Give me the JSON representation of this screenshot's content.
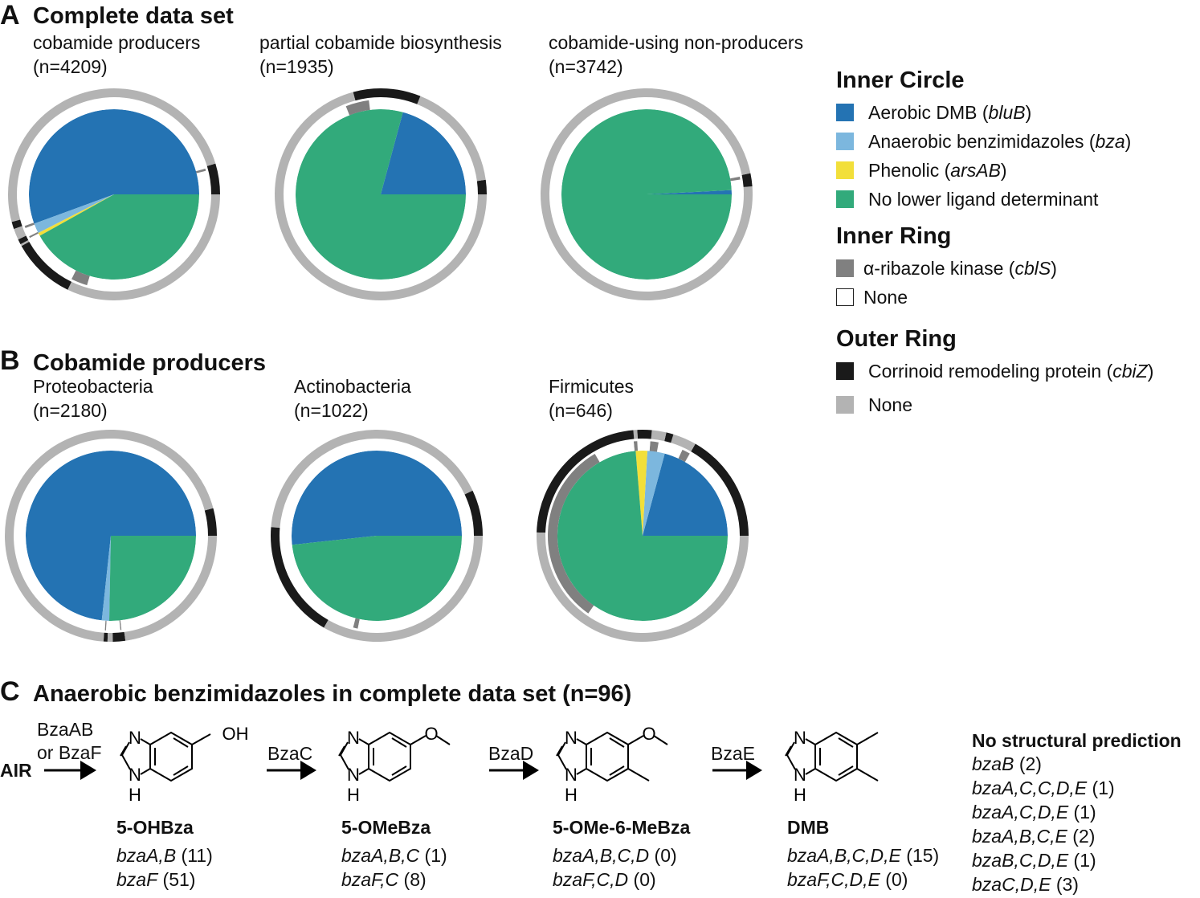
{
  "colors": {
    "aerobic_dmb": "#2473b3",
    "anaerobic_bza": "#7cb7de",
    "phenolic": "#f2df3a",
    "no_determinant": "#32aa7b",
    "cblS": "#808080",
    "inner_none": "#ffffff",
    "cbiZ": "#1a1a1a",
    "outer_none": "#b3b3b3"
  },
  "panelA": {
    "letter": "A",
    "title": "Complete data set"
  },
  "panelB": {
    "letter": "B",
    "title": "Cobamide producers"
  },
  "panelC": {
    "letter": "C",
    "title": "Anaerobic benzimidazoles in complete data set (n=96)"
  },
  "chart_data": [
    {
      "type": "pie",
      "panel": "A",
      "title": "cobamide producers",
      "n_label": "(n=4209)",
      "inner_circle": [
        [
          "aerobic_dmb",
          0.556
        ],
        [
          "anaerobic_bza",
          0.019
        ],
        [
          "phenolic",
          0.006
        ],
        [
          "no_determinant",
          0.419
        ]
      ],
      "inner_ring": [
        [
          "inner_none",
          0.04
        ],
        [
          "cblS",
          0.004
        ],
        [
          "inner_none",
          0.51
        ],
        [
          "cblS",
          0.004
        ],
        [
          "inner_none",
          0.015
        ],
        [
          "cblS",
          0.003
        ],
        [
          "inner_none",
          0.1
        ],
        [
          "cblS",
          0.028
        ],
        [
          "inner_none",
          0.296
        ]
      ],
      "outer_ring": [
        [
          "cbiZ",
          0.047
        ],
        [
          "outer_none",
          0.495
        ],
        [
          "cbiZ",
          0.011
        ],
        [
          "outer_none",
          0.017
        ],
        [
          "cbiZ",
          0.008
        ],
        [
          "outer_none",
          0.003
        ],
        [
          "cbiZ",
          0.097
        ],
        [
          "outer_none",
          0.322
        ]
      ]
    },
    {
      "type": "pie",
      "panel": "A",
      "title": "partial cobamide biosynthesis",
      "n_label": "(n=1935)",
      "inner_circle": [
        [
          "aerobic_dmb",
          0.208
        ],
        [
          "no_determinant",
          0.792
        ]
      ],
      "inner_ring": [
        [
          "inner_none",
          0.27
        ],
        [
          "cblS",
          0.04
        ],
        [
          "inner_none",
          0.69
        ]
      ],
      "outer_ring": [
        [
          "cbiZ",
          0.022
        ],
        [
          "outer_none",
          0.167
        ],
        [
          "cbiZ",
          0.103
        ],
        [
          "outer_none",
          0.708
        ]
      ]
    },
    {
      "type": "pie",
      "panel": "A",
      "title": "cobamide-using non-producers",
      "n_label": "(n=3742)",
      "inner_circle": [
        [
          "aerobic_dmb",
          0.008
        ],
        [
          "no_determinant",
          0.992
        ]
      ],
      "inner_ring": [
        [
          "inner_none",
          0.025
        ],
        [
          "cblS",
          0.005
        ],
        [
          "inner_none",
          0.97
        ]
      ],
      "outer_ring": [
        [
          "outer_none",
          0.012
        ],
        [
          "cbiZ",
          0.02
        ],
        [
          "outer_none",
          0.968
        ]
      ]
    },
    {
      "type": "pie",
      "panel": "B",
      "title": "Proteobacteria",
      "n_label": "(n=2180)",
      "inner_circle": [
        [
          "aerobic_dmb",
          0.733
        ],
        [
          "anaerobic_bza",
          0.014
        ],
        [
          "no_determinant",
          0.253
        ]
      ],
      "inner_ring": [
        [
          "inner_none",
          0.74
        ],
        [
          "cblS",
          0.002
        ],
        [
          "inner_none",
          0.024
        ],
        [
          "cblS",
          0.002
        ],
        [
          "inner_none",
          0.232
        ]
      ],
      "outer_ring": [
        [
          "cbiZ",
          0.042
        ],
        [
          "outer_none",
          0.697
        ],
        [
          "cbiZ",
          0.006
        ],
        [
          "outer_none",
          0.008
        ],
        [
          "cbiZ",
          0.019
        ],
        [
          "outer_none",
          0.228
        ]
      ]
    },
    {
      "type": "pie",
      "panel": "B",
      "title": "Actinobacteria",
      "n_label": "(n=1022)",
      "inner_circle": [
        [
          "aerobic_dmb",
          0.517
        ],
        [
          "no_determinant",
          0.483
        ]
      ],
      "inner_ring": [
        [
          "inner_none",
          0.71
        ],
        [
          "cblS",
          0.008
        ],
        [
          "inner_none",
          0.282
        ]
      ],
      "outer_ring": [
        [
          "cbiZ",
          0.07
        ],
        [
          "outer_none",
          0.417
        ],
        [
          "cbiZ",
          0.18
        ],
        [
          "outer_none",
          0.333
        ]
      ]
    },
    {
      "type": "pie",
      "panel": "B",
      "title": "Firmicutes",
      "n_label": "(n=646)",
      "inner_circle": [
        [
          "aerobic_dmb",
          0.208
        ],
        [
          "anaerobic_bza",
          0.033
        ],
        [
          "phenolic",
          0.022
        ],
        [
          "no_determinant",
          0.737
        ]
      ],
      "inner_ring": [
        [
          "inner_none",
          0.167
        ],
        [
          "cblS",
          0.014
        ],
        [
          "inner_none",
          0.042
        ],
        [
          "cblS",
          0.014
        ],
        [
          "inner_none",
          0.022
        ],
        [
          "cblS",
          0.006
        ],
        [
          "inner_none",
          0.069
        ],
        [
          "cblS",
          0.319
        ],
        [
          "inner_none",
          0.347
        ]
      ],
      "outer_ring": [
        [
          "cbiZ",
          0.167
        ],
        [
          "outer_none",
          0.036
        ],
        [
          "cbiZ",
          0.011
        ],
        [
          "outer_none",
          0.022
        ],
        [
          "cbiZ",
          0.022
        ],
        [
          "outer_none",
          0.006
        ],
        [
          "cbiZ",
          0.231
        ],
        [
          "outer_none",
          0.505
        ]
      ]
    }
  ],
  "legend": {
    "inner_circle": {
      "heading": "Inner Circle",
      "items": [
        {
          "key": "aerobic_dmb",
          "pre": "Aerobic DMB (",
          "it": "bluB",
          "post": ")"
        },
        {
          "key": "anaerobic_bza",
          "pre": "Anaerobic benzimidazoles (",
          "it": "bza",
          "post": ")"
        },
        {
          "key": "phenolic",
          "pre": "Phenolic (",
          "it": "arsAB",
          "post": ")"
        },
        {
          "key": "no_determinant",
          "pre": "No lower ligand determinant",
          "it": "",
          "post": ""
        }
      ]
    },
    "inner_ring": {
      "heading": "Inner Ring",
      "items": [
        {
          "key": "cblS",
          "pre": "α-ribazole kinase (",
          "it": "cblS",
          "post": ")"
        },
        {
          "key": "inner_none",
          "pre": "None",
          "it": "",
          "post": ""
        }
      ]
    },
    "outer_ring": {
      "heading": "Outer Ring",
      "items": [
        {
          "key": "cbiZ",
          "pre": "Corrinoid remodeling protein (",
          "it": "cbiZ",
          "post": ")"
        },
        {
          "key": "outer_none",
          "pre": "None",
          "it": "",
          "post": ""
        }
      ]
    }
  },
  "pathway": {
    "substrate": "AIR",
    "enzymes": [
      "BzaAB",
      "or BzaF",
      "BzaC",
      "BzaD",
      "BzaE"
    ],
    "atoms": {
      "N": "N",
      "H": "H",
      "OH": "OH",
      "O": "O"
    },
    "compounds": [
      {
        "name": "5-OHBza",
        "genes": [
          {
            "it": "bzaA,B",
            "count": " (11)"
          },
          {
            "it": "bzaF",
            "count": " (51)"
          }
        ]
      },
      {
        "name": "5-OMeBza",
        "genes": [
          {
            "it": "bzaA,B,C",
            "count": " (1)"
          },
          {
            "it": "bzaF,C",
            "count": " (8)"
          }
        ]
      },
      {
        "name": "5-OMe-6-MeBza",
        "genes": [
          {
            "it": "bzaA,B,C,D",
            "count": " (0)"
          },
          {
            "it": "bzaF,C,D",
            "count": " (0)"
          }
        ]
      },
      {
        "name": "DMB",
        "genes": [
          {
            "it": "bzaA,B,C,D,E",
            "count": " (15)"
          },
          {
            "it": "bzaF,C,D,E",
            "count": " (0)"
          }
        ]
      }
    ],
    "no_prediction": {
      "heading": "No structural prediction",
      "items": [
        {
          "it": "bzaB",
          "count": " (2)"
        },
        {
          "it": "bzaA,C,C,D,E",
          "count": " (1)"
        },
        {
          "it": "bzaA,C,D,E",
          "count": " (1)"
        },
        {
          "it": "bzaA,B,C,E",
          "count": " (2)"
        },
        {
          "it": "bzaB,C,D,E",
          "count": " (1)"
        },
        {
          "it": "bzaC,D,E",
          "count": " (3)"
        }
      ]
    }
  }
}
